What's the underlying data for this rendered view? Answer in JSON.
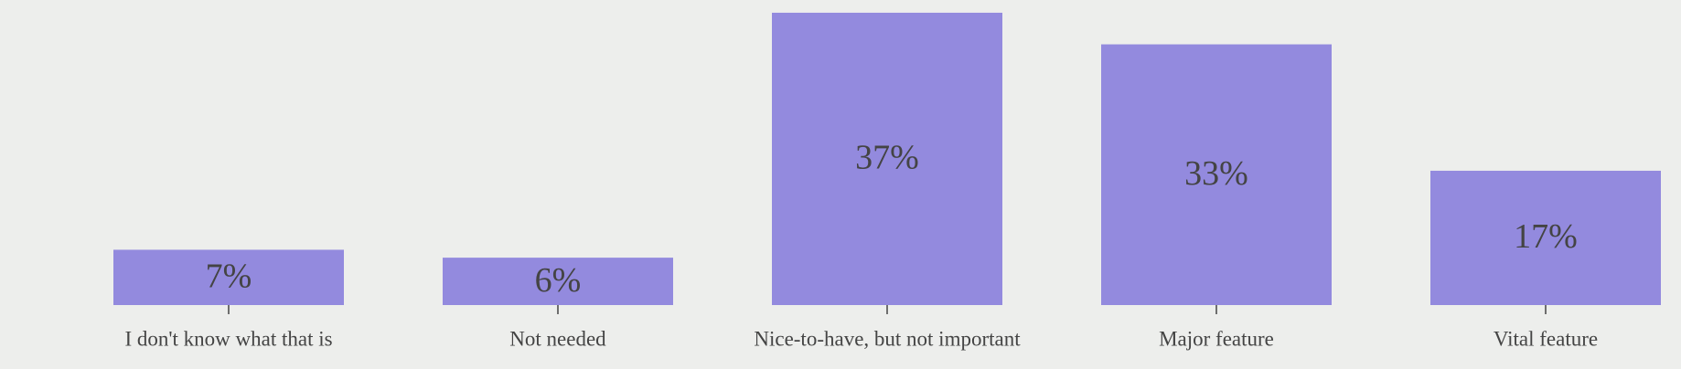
{
  "chart_data": {
    "type": "bar",
    "categories": [
      "I don't know what that is",
      "Not needed",
      "Nice-to-have, but not important",
      "Major feature",
      "Vital feature"
    ],
    "values": [
      7,
      6,
      37,
      33,
      17
    ],
    "value_labels": [
      "7%",
      "6%",
      "37%",
      "33%",
      "17%"
    ],
    "color": "#938ade"
  }
}
